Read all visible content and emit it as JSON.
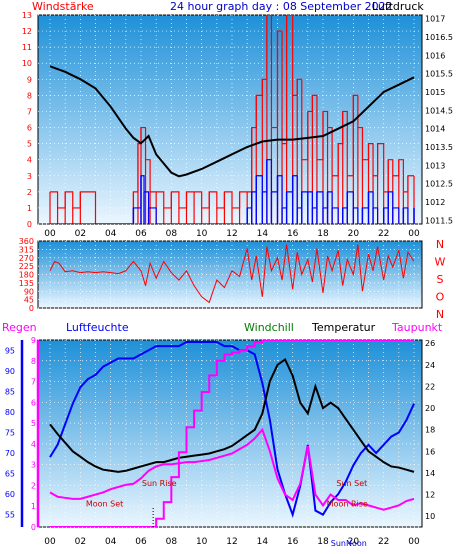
{
  "header": {
    "left_label": "Windstärke",
    "title": "24 hour graph day : 08 September 2022",
    "right_label": "Luftdruck"
  },
  "colors": {
    "frame": "#000000",
    "grid": "#ffffff",
    "gradient_top": "#1e90d8",
    "gradient_bottom": "#eaf6ff",
    "pressure": "#000000",
    "wind_gust": "#ff0000",
    "wind_avg": "#0000ff",
    "wind_dir": "#ff0000",
    "humidity": "#0000ff",
    "windchill": "#008000",
    "temperature": "#000000",
    "dewpoint": "#ff00ff",
    "rain": "#ff00ff",
    "celestial_text": "#cc0000"
  },
  "x_ticks": [
    "00",
    "02",
    "04",
    "06",
    "08",
    "10",
    "12",
    "14",
    "16",
    "18",
    "20",
    "22",
    "00"
  ],
  "chart_data": [
    {
      "type": "line",
      "title": "24 hour graph day : 08 September 2022",
      "x_ticks": [
        "00",
        "02",
        "04",
        "06",
        "08",
        "10",
        "12",
        "14",
        "16",
        "18",
        "20",
        "22",
        "00"
      ],
      "left_axis": {
        "label": "Windstärke",
        "ticks": [
          0,
          1,
          2,
          3,
          4,
          5,
          6,
          7,
          8,
          9,
          10,
          11,
          12,
          13
        ],
        "range": [
          0,
          13
        ]
      },
      "right_axis": {
        "label": "Luftdruck",
        "ticks": [
          1011.5,
          1012,
          1012.5,
          1013,
          1013.5,
          1014,
          1014.5,
          1015,
          1015.5,
          1016,
          1016.5,
          1017
        ],
        "range": [
          1011.4,
          1017.1
        ]
      },
      "series": [
        {
          "axis": "right",
          "color": "#000000",
          "hours": [
            0,
            1,
            2,
            3,
            4,
            5,
            5.5,
            6,
            6.5,
            7,
            7.5,
            8,
            8.5,
            9,
            10,
            11,
            12,
            13,
            14,
            15,
            16,
            17,
            18,
            19,
            20,
            21,
            22,
            23,
            24
          ],
          "values": [
            1015.7,
            1015.55,
            1015.35,
            1015.1,
            1014.6,
            1014.0,
            1013.75,
            1013.6,
            1013.8,
            1013.3,
            1013.05,
            1012.8,
            1012.7,
            1012.75,
            1012.9,
            1013.1,
            1013.3,
            1013.5,
            1013.65,
            1013.7,
            1013.7,
            1013.75,
            1013.8,
            1014.0,
            1014.2,
            1014.6,
            1015.0,
            1015.2,
            1015.4
          ]
        },
        {
          "axis": "left",
          "color": "#ff0000",
          "hours": [
            0,
            0.5,
            1,
            1.5,
            2,
            3,
            4,
            5,
            5.5,
            5.8,
            6,
            6.3,
            6.6,
            7,
            7.5,
            8,
            8.5,
            9,
            9.5,
            10,
            10.5,
            11,
            11.5,
            12,
            12.5,
            13,
            13.3,
            13.6,
            14,
            14.3,
            14.6,
            15,
            15.3,
            15.6,
            16,
            16.3,
            16.6,
            17,
            17.3,
            17.6,
            18,
            18.3,
            18.6,
            19,
            19.3,
            19.6,
            20,
            20.3,
            20.6,
            21,
            21.3,
            21.6,
            22,
            22.3,
            22.6,
            23,
            23.3,
            23.6,
            24
          ],
          "values": [
            2,
            1,
            2,
            1,
            2,
            0,
            0,
            0,
            2,
            5,
            6,
            4,
            2,
            2,
            1,
            2,
            1,
            2,
            2,
            1,
            2,
            1,
            2,
            1,
            2,
            2,
            6,
            8,
            9,
            13,
            6,
            12,
            5,
            13,
            8,
            9,
            4,
            7,
            8,
            4,
            7,
            6,
            3,
            5,
            7,
            3,
            8,
            6,
            4,
            5,
            3,
            5,
            2,
            4,
            3,
            4,
            2,
            3,
            3
          ]
        },
        {
          "axis": "left",
          "color": "#0000ff",
          "hours": [
            0,
            1,
            2,
            3,
            4,
            5,
            5.5,
            6,
            6.2,
            6.5,
            7,
            8,
            9,
            10,
            11,
            12,
            12.5,
            13,
            13.3,
            13.6,
            14,
            14.3,
            14.6,
            15,
            15.3,
            15.6,
            16,
            16.3,
            16.6,
            17,
            17.3,
            17.6,
            18,
            18.3,
            18.6,
            19,
            19.3,
            19.6,
            20,
            20.3,
            20.6,
            21,
            21.3,
            21.6,
            22,
            22.3,
            22.6,
            23,
            23.3,
            23.6,
            24
          ],
          "values": [
            0,
            0,
            0,
            0,
            0,
            0,
            1,
            3,
            2,
            1,
            0,
            0,
            0,
            0,
            0,
            0,
            0,
            1,
            2,
            3,
            2,
            4,
            2,
            3,
            1,
            2,
            3,
            1,
            2,
            2,
            1,
            2,
            1,
            2,
            1,
            0,
            1,
            2,
            1,
            0,
            1,
            2,
            1,
            0,
            1,
            2,
            1,
            0,
            1,
            0,
            1
          ]
        }
      ]
    },
    {
      "type": "line",
      "left_axis": {
        "ticks": [
          0,
          45,
          90,
          135,
          180,
          225,
          270,
          315,
          360
        ],
        "range": [
          0,
          360
        ]
      },
      "right_labels": [
        "N",
        "W",
        "S",
        "O",
        "N"
      ],
      "series": [
        {
          "color": "#ff0000",
          "hours": [
            0,
            0.3,
            0.6,
            1,
            1.5,
            2,
            2.5,
            3,
            3.5,
            4,
            4.5,
            5,
            5.5,
            6,
            6.3,
            6.6,
            7,
            7.5,
            8,
            8.5,
            9,
            9.5,
            10,
            10.5,
            11,
            11.5,
            12,
            12.5,
            13,
            13.3,
            13.6,
            14,
            14.3,
            14.6,
            15,
            15.3,
            15.6,
            16,
            16.3,
            16.6,
            17,
            17.3,
            17.6,
            18,
            18.3,
            18.6,
            19,
            19.3,
            19.6,
            20,
            20.3,
            20.6,
            21,
            21.3,
            21.6,
            22,
            22.3,
            22.6,
            23,
            23.3,
            23.6,
            24
          ],
          "values": [
            200,
            250,
            240,
            195,
            200,
            190,
            195,
            190,
            195,
            190,
            185,
            200,
            250,
            200,
            120,
            240,
            160,
            250,
            190,
            150,
            200,
            120,
            60,
            30,
            150,
            110,
            200,
            170,
            320,
            150,
            280,
            60,
            330,
            200,
            270,
            150,
            340,
            100,
            300,
            180,
            260,
            140,
            320,
            80,
            280,
            200,
            310,
            120,
            260,
            180,
            340,
            90,
            290,
            200,
            330,
            150,
            280,
            220,
            310,
            160,
            300,
            250
          ]
        }
      ]
    },
    {
      "type": "line",
      "axes": [
        {
          "label": "Regen",
          "ticks": [
            0,
            1,
            2,
            3,
            4,
            5,
            6,
            7,
            8,
            9
          ],
          "range": [
            0,
            9
          ]
        },
        {
          "label": "Luftfeuchte",
          "ticks": [
            55,
            60,
            65,
            70,
            75,
            80,
            85,
            90,
            95
          ],
          "range": [
            52,
            97.5
          ]
        },
        {
          "label": "Temperatur",
          "ticks": [
            10,
            12,
            14,
            16,
            18,
            20,
            22,
            24,
            26
          ],
          "range": [
            9,
            26.3
          ]
        }
      ],
      "legend": [
        "Windchill",
        "Temperatur",
        "Taupunkt"
      ],
      "series": [
        {
          "name": "Luftfeuchte",
          "axis": "humidity",
          "color": "#0000ff",
          "hours": [
            0,
            0.5,
            1,
            1.5,
            2,
            2.5,
            3,
            3.5,
            4,
            4.5,
            5,
            5.5,
            6,
            6.5,
            7,
            7.5,
            8,
            8.5,
            9,
            9.5,
            10,
            10.5,
            11,
            11.5,
            12,
            12.5,
            13,
            13.5,
            14,
            14.5,
            15,
            15.5,
            16,
            16.5,
            17,
            17.5,
            18,
            18.5,
            19,
            19.5,
            20,
            20.5,
            21,
            21.5,
            22,
            22.5,
            23,
            23.5,
            24
          ],
          "values": [
            69,
            72,
            77,
            82,
            86,
            88,
            89,
            91,
            92,
            93,
            93,
            93,
            94,
            95,
            96,
            96,
            96,
            96,
            97,
            97,
            97,
            97,
            97,
            96,
            96,
            95,
            95,
            94,
            87,
            78,
            66,
            60,
            55,
            62,
            72,
            56,
            55,
            58,
            60,
            63,
            67,
            70,
            72,
            70,
            72,
            74,
            75,
            78,
            82
          ]
        },
        {
          "name": "Temperatur",
          "axis": "temperature",
          "color": "#000000",
          "hours": [
            0,
            0.5,
            1,
            1.5,
            2,
            2.5,
            3,
            3.5,
            4,
            4.5,
            5,
            5.5,
            6,
            6.5,
            7,
            7.5,
            8,
            8.5,
            9,
            9.5,
            10,
            10.5,
            11,
            11.5,
            12,
            12.5,
            13,
            13.5,
            14,
            14.5,
            15,
            15.5,
            16,
            16.5,
            17,
            17.5,
            18,
            18.5,
            19,
            19.5,
            20,
            20.5,
            21,
            21.5,
            22,
            22.5,
            23,
            23.5,
            24
          ],
          "values": [
            18.5,
            17.6,
            16.8,
            16.0,
            15.5,
            15.0,
            14.6,
            14.3,
            14.2,
            14.1,
            14.2,
            14.4,
            14.6,
            14.8,
            15.0,
            15.0,
            15.2,
            15.4,
            15.5,
            15.6,
            15.7,
            15.8,
            16.0,
            16.2,
            16.5,
            17.0,
            17.5,
            18.0,
            19.5,
            22.5,
            24.0,
            24.5,
            23.0,
            20.5,
            19.5,
            22.0,
            20.0,
            20.5,
            20.0,
            19.0,
            18.0,
            17.0,
            16.0,
            15.5,
            15.0,
            14.6,
            14.5,
            14.3,
            14.1
          ]
        },
        {
          "name": "Taupunkt",
          "axis": "temperature",
          "color": "#ff00ff",
          "hours": [
            0,
            0.5,
            1,
            1.5,
            2,
            2.5,
            3,
            3.5,
            4,
            4.5,
            5,
            5.5,
            6,
            6.5,
            7,
            7.5,
            8,
            8.5,
            9,
            9.5,
            10,
            10.5,
            11,
            11.5,
            12,
            12.5,
            13,
            13.5,
            14,
            14.5,
            15,
            15.5,
            16,
            16.5,
            17,
            17.5,
            18,
            18.5,
            19,
            19.5,
            20,
            20.5,
            21,
            21.5,
            22,
            22.5,
            23,
            23.5,
            24
          ],
          "values": [
            12.2,
            11.8,
            11.7,
            11.6,
            11.6,
            11.8,
            12.0,
            12.2,
            12.5,
            12.7,
            12.9,
            13.0,
            13.5,
            14.2,
            14.6,
            14.8,
            14.8,
            14.9,
            15.0,
            15.0,
            15.1,
            15.2,
            15.4,
            15.6,
            15.8,
            16.2,
            16.6,
            17.2,
            18.0,
            16.0,
            13.5,
            12.0,
            11.5,
            13.0,
            16.5,
            12.0,
            11.0,
            12.0,
            11.5,
            11.5,
            11.0,
            11.2,
            11.0,
            10.8,
            10.6,
            10.8,
            11.0,
            11.4,
            11.6
          ]
        },
        {
          "name": "Regen",
          "axis": "rain",
          "color": "#ff00ff",
          "hours": [
            0,
            6.5,
            7,
            7.5,
            8,
            8.5,
            9,
            9.5,
            10,
            10.5,
            11,
            11.5,
            12,
            12.5,
            13,
            13.5,
            14,
            15,
            16,
            17,
            18,
            19,
            20,
            21,
            22,
            23,
            24
          ],
          "values": [
            0,
            0,
            0.4,
            1.2,
            2.4,
            3.6,
            4.8,
            5.6,
            6.5,
            7.3,
            8.0,
            8.3,
            8.4,
            8.5,
            8.7,
            8.9,
            9.0,
            9.0,
            9.0,
            9.0,
            9.0,
            9.0,
            9.0,
            9.0,
            9.0,
            9.0,
            9.0
          ]
        }
      ],
      "annotations": [
        {
          "text": "Moon Set",
          "hour": 3.6,
          "value_humidity": 57
        },
        {
          "text": "Sun Rise",
          "hour": 7.2,
          "value_humidity": 62
        },
        {
          "text": "Sun Set",
          "hour": 19.9,
          "value_humidity": 62
        },
        {
          "text": "Moon Rise",
          "hour": 19.6,
          "value_humidity": 57
        }
      ]
    }
  ],
  "panel3_labels": {
    "regen": "Regen",
    "luftfeuchte": "Luftfeuchte",
    "windchill": "Windchill",
    "temperatur": "Temperatur",
    "taupunkt": "Taupunkt"
  },
  "bottom_marker": "SunNoon"
}
